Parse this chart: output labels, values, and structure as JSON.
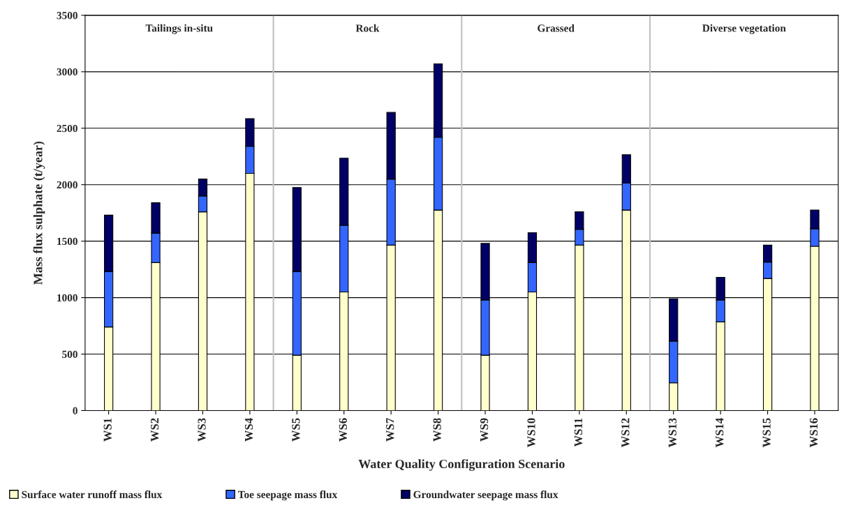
{
  "chart_data": {
    "type": "bar",
    "stacked": true,
    "xlabel": "Water Quality Configuration Scenario",
    "ylabel": "Mass flux sulphate (t/year)",
    "categories": [
      "WS1",
      "WS2",
      "WS3",
      "WS4",
      "WS5",
      "WS6",
      "WS7",
      "WS8",
      "WS9",
      "WS10",
      "WS11",
      "WS12",
      "WS13",
      "WS14",
      "WS15",
      "WS16"
    ],
    "series": [
      {
        "name": "Surface water runoff mass flux",
        "color": "#ffffcc",
        "values": [
          740,
          1310,
          1760,
          2100,
          490,
          1050,
          1465,
          1775,
          490,
          1050,
          1465,
          1775,
          245,
          785,
          1170,
          1455
        ]
      },
      {
        "name": "Toe seepage mass flux",
        "color": "#3366ff",
        "values": [
          490,
          260,
          140,
          240,
          740,
          590,
          585,
          645,
          490,
          260,
          140,
          240,
          370,
          195,
          145,
          155
        ]
      },
      {
        "name": "Groundwater seepage mass flux",
        "color": "#000066",
        "values": [
          500,
          270,
          150,
          245,
          745,
          595,
          590,
          650,
          500,
          265,
          155,
          250,
          375,
          200,
          150,
          165
        ]
      }
    ],
    "ylim": [
      0,
      3500
    ],
    "yticks": [
      0,
      500,
      1000,
      1500,
      2000,
      2500,
      3000,
      3500
    ],
    "grid": "y",
    "legend": "bottom",
    "annotations": [
      "Tailings in-situ",
      "Rock",
      "Grassed",
      "Diverse vegetation"
    ]
  }
}
